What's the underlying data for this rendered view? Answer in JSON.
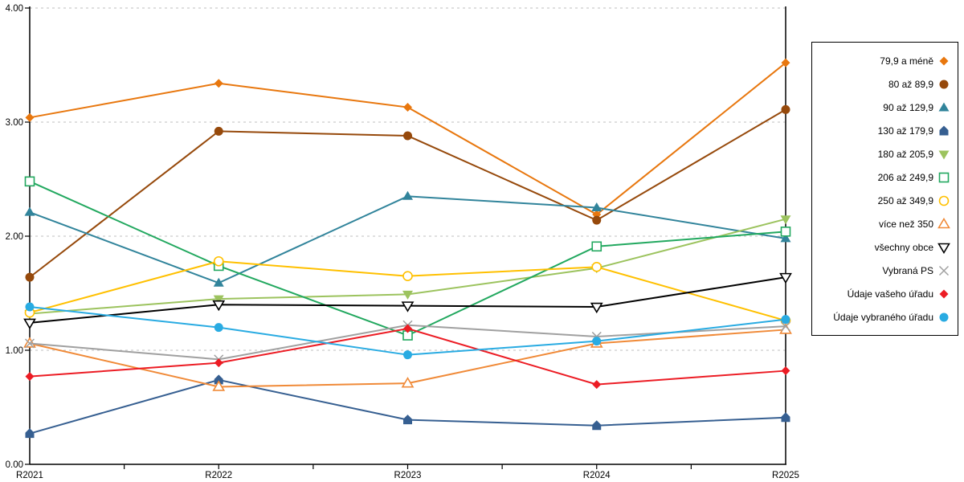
{
  "chart_data": {
    "type": "line",
    "title": "",
    "x": [
      "R2021",
      "R2022",
      "R2023",
      "R2024",
      "R2025"
    ],
    "ylim": [
      0,
      4
    ],
    "ytick_labels": [
      "4.00",
      "3.00",
      "2.00",
      "1.00",
      "0.00"
    ],
    "ytick_values": [
      4,
      3,
      2,
      1,
      0
    ],
    "grid": "horizontal-dashed",
    "legend_position": "right-box",
    "axis_color": "#000000",
    "gridline_color": "#bfbfbf",
    "series": [
      {
        "name": "79,9 a méně",
        "marker": "diamond-filled",
        "color": "#E8770E",
        "values": [
          3.04,
          3.34,
          3.13,
          2.19,
          3.52
        ]
      },
      {
        "name": "80 až 89,9",
        "marker": "circle-filled",
        "color": "#96490B",
        "values": [
          1.64,
          2.92,
          2.88,
          2.14,
          3.11
        ]
      },
      {
        "name": "90 až 129,9",
        "marker": "triangle-up-filled",
        "color": "#31849B",
        "values": [
          2.21,
          1.59,
          2.35,
          2.25,
          1.98
        ]
      },
      {
        "name": "130 až 179,9",
        "marker": "pentagon-filled",
        "color": "#365F91",
        "values": [
          0.27,
          0.74,
          0.39,
          0.34,
          0.41
        ]
      },
      {
        "name": "180 až 205,9",
        "marker": "triangle-down-filled",
        "color": "#9CC35E",
        "values": [
          1.32,
          1.45,
          1.49,
          1.72,
          2.15
        ]
      },
      {
        "name": "206 až 249,9",
        "marker": "square-open",
        "color": "#22A85F",
        "values": [
          2.48,
          1.74,
          1.13,
          1.91,
          2.04
        ]
      },
      {
        "name": "250 až 349,9",
        "marker": "circle-open",
        "color": "#FFC000",
        "values": [
          1.33,
          1.78,
          1.65,
          1.73,
          1.26
        ]
      },
      {
        "name": "více než 350",
        "marker": "triangle-up-open",
        "color": "#F08A38",
        "values": [
          1.06,
          0.68,
          0.71,
          1.06,
          1.18
        ]
      },
      {
        "name": "všechny obce",
        "marker": "triangle-down-open",
        "color": "#000000",
        "values": [
          1.24,
          1.4,
          1.39,
          1.38,
          1.64
        ]
      },
      {
        "name": "Vybraná PS",
        "marker": "x",
        "color": "#A0A0A0",
        "values": [
          1.06,
          0.92,
          1.22,
          1.12,
          1.21
        ]
      },
      {
        "name": "Údaje vašeho úřadu",
        "marker": "diamond-filled",
        "color": "#EC1C24",
        "values": [
          0.77,
          0.89,
          1.19,
          0.7,
          0.82
        ]
      },
      {
        "name": "Údaje vybraného úřadu",
        "marker": "circle-filled",
        "color": "#29ABE2",
        "values": [
          1.38,
          1.2,
          0.96,
          1.08,
          1.27
        ]
      }
    ]
  }
}
